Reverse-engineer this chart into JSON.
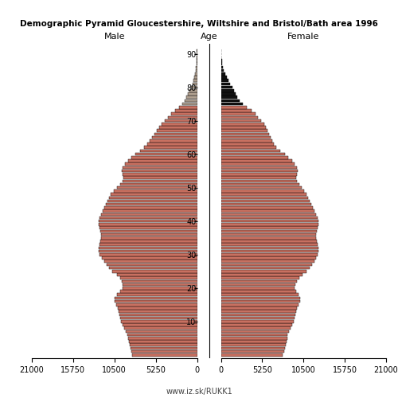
{
  "title": "Demographic Pyramid Gloucestershire, Wiltshire and Bristol/Bath area 1996",
  "xlabel_left": "Male",
  "xlabel_right": "Female",
  "ylabel": "Age",
  "source": "www.iz.sk/RUKK1",
  "xlim": 21000,
  "xticks": [
    0,
    5250,
    10500,
    15750,
    21000
  ],
  "yticks": [
    10,
    20,
    30,
    40,
    50,
    60,
    70,
    80,
    90
  ],
  "age_groups": [
    0,
    1,
    2,
    3,
    4,
    5,
    6,
    7,
    8,
    9,
    10,
    11,
    12,
    13,
    14,
    15,
    16,
    17,
    18,
    19,
    20,
    21,
    22,
    23,
    24,
    25,
    26,
    27,
    28,
    29,
    30,
    31,
    32,
    33,
    34,
    35,
    36,
    37,
    38,
    39,
    40,
    41,
    42,
    43,
    44,
    45,
    46,
    47,
    48,
    49,
    50,
    51,
    52,
    53,
    54,
    55,
    56,
    57,
    58,
    59,
    60,
    61,
    62,
    63,
    64,
    65,
    66,
    67,
    68,
    69,
    70,
    71,
    72,
    73,
    74,
    75,
    76,
    77,
    78,
    79,
    80,
    81,
    82,
    83,
    84,
    85,
    86,
    87,
    88,
    89,
    90,
    91
  ],
  "male": [
    8200,
    8400,
    8500,
    8600,
    8700,
    8800,
    8900,
    9100,
    9300,
    9500,
    9700,
    9800,
    9900,
    10000,
    10100,
    10300,
    10500,
    10500,
    10200,
    9800,
    9500,
    9500,
    9600,
    9800,
    10200,
    10800,
    11200,
    11500,
    11800,
    12100,
    12400,
    12500,
    12500,
    12400,
    12300,
    12200,
    12200,
    12300,
    12400,
    12500,
    12500,
    12400,
    12200,
    12000,
    11800,
    11600,
    11400,
    11200,
    11000,
    10600,
    10200,
    9800,
    9500,
    9400,
    9500,
    9600,
    9500,
    9200,
    8800,
    8300,
    7800,
    7200,
    6700,
    6300,
    6000,
    5700,
    5400,
    5100,
    4800,
    4500,
    4100,
    3700,
    3300,
    2800,
    2300,
    1900,
    1600,
    1400,
    1200,
    1000,
    800,
    600,
    450,
    350,
    250,
    180,
    120,
    80,
    50,
    30,
    20,
    10
  ],
  "female": [
    7800,
    8000,
    8100,
    8200,
    8300,
    8400,
    8500,
    8700,
    8900,
    9100,
    9300,
    9400,
    9500,
    9600,
    9700,
    9900,
    10100,
    10100,
    9900,
    9600,
    9400,
    9500,
    9700,
    10000,
    10400,
    10900,
    11300,
    11600,
    11900,
    12100,
    12300,
    12400,
    12400,
    12300,
    12200,
    12100,
    12100,
    12200,
    12300,
    12400,
    12400,
    12300,
    12100,
    11900,
    11700,
    11500,
    11300,
    11100,
    10900,
    10600,
    10300,
    10000,
    9700,
    9600,
    9700,
    9800,
    9700,
    9400,
    9100,
    8600,
    8100,
    7500,
    7000,
    6700,
    6500,
    6300,
    6100,
    5900,
    5700,
    5500,
    5100,
    4700,
    4400,
    3900,
    3300,
    2800,
    2400,
    2100,
    1900,
    1700,
    1500,
    1200,
    950,
    750,
    550,
    400,
    280,
    190,
    120,
    80,
    50,
    30
  ],
  "bar_color_male_young": "#c87060",
  "bar_color_male_old": "#b0a090",
  "bar_color_female_young": "#c87060",
  "bar_color_female_old": "#111111",
  "bar_edge_color": "#000000",
  "background_color": "#ffffff",
  "old_age_threshold": 75,
  "title_fontsize": 7.5,
  "axis_label_fontsize": 8,
  "tick_fontsize": 7,
  "source_fontsize": 7
}
